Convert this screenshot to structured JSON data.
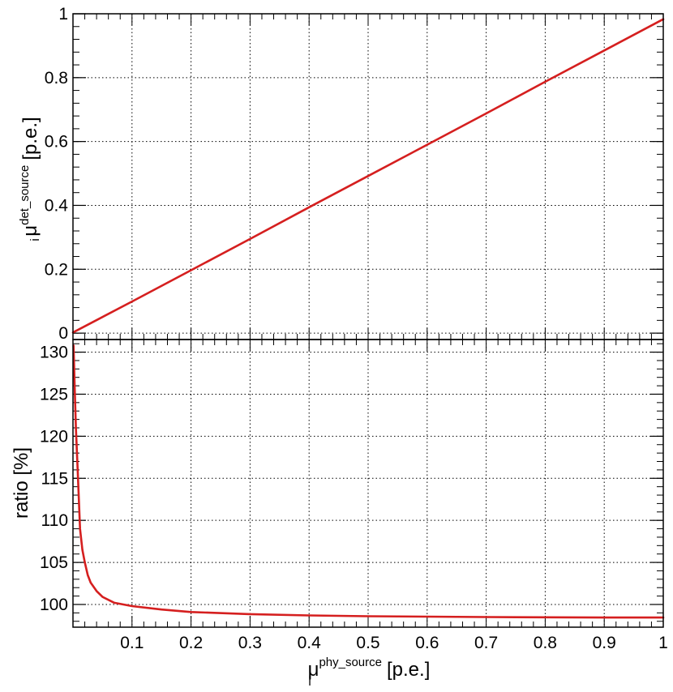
{
  "colors": {
    "curve": "#d51f1f",
    "frame": "#000000",
    "grid": "#000000",
    "background": "#ffffff"
  },
  "chart_data": [
    {
      "type": "line",
      "panel": "top",
      "title": "",
      "xlim": [
        0,
        1
      ],
      "ylim": [
        -0.02,
        1.0
      ],
      "yticks": [
        0,
        0.2,
        0.4,
        0.6,
        0.8,
        1
      ],
      "ytick_labels": [
        "0",
        "0.2",
        "0.4",
        "0.6",
        "0.8",
        "1"
      ],
      "ylabel": {
        "base": "μ",
        "superscript": "det_source",
        "subscript": "i",
        "unit": "[p.e.]"
      },
      "grid": true,
      "series": [
        {
          "x": [
            0.0,
            0.1,
            0.2,
            0.3,
            0.4,
            0.5,
            0.6,
            0.7,
            0.8,
            0.9,
            1.0
          ],
          "y": [
            0.002,
            0.099,
            0.197,
            0.295,
            0.394,
            0.492,
            0.59,
            0.688,
            0.787,
            0.885,
            0.983
          ]
        }
      ]
    },
    {
      "type": "line",
      "panel": "bottom",
      "title": "",
      "xlim": [
        0,
        1
      ],
      "ylim": [
        97.3,
        131.5
      ],
      "yticks": [
        100,
        105,
        110,
        115,
        120,
        125,
        130
      ],
      "ytick_labels": [
        "100",
        "105",
        "110",
        "115",
        "120",
        "125",
        "130"
      ],
      "xticks": [
        0.1,
        0.2,
        0.3,
        0.4,
        0.5,
        0.6,
        0.7,
        0.8,
        0.9,
        1
      ],
      "xtick_labels": [
        "0.1",
        "0.2",
        "0.3",
        "0.4",
        "0.5",
        "0.6",
        "0.7",
        "0.8",
        "0.9",
        "1"
      ],
      "ylabel": "ratio [%]",
      "xlabel": {
        "base": "μ",
        "superscript": "phy_source",
        "subscript": "i",
        "unit": "[p.e.]"
      },
      "grid": true,
      "series": [
        {
          "x": [
            0.001,
            0.003,
            0.005,
            0.008,
            0.012,
            0.016,
            0.02,
            0.025,
            0.03,
            0.04,
            0.05,
            0.07,
            0.1,
            0.15,
            0.2,
            0.3,
            0.4,
            0.5,
            0.6,
            0.7,
            0.8,
            0.9,
            1.0
          ],
          "y": [
            130.8,
            125.5,
            121.0,
            116.0,
            109.0,
            106.5,
            105.0,
            103.5,
            102.6,
            101.6,
            100.9,
            100.2,
            99.8,
            99.4,
            99.1,
            98.85,
            98.7,
            98.6,
            98.55,
            98.5,
            98.48,
            98.45,
            98.45
          ]
        }
      ]
    }
  ]
}
